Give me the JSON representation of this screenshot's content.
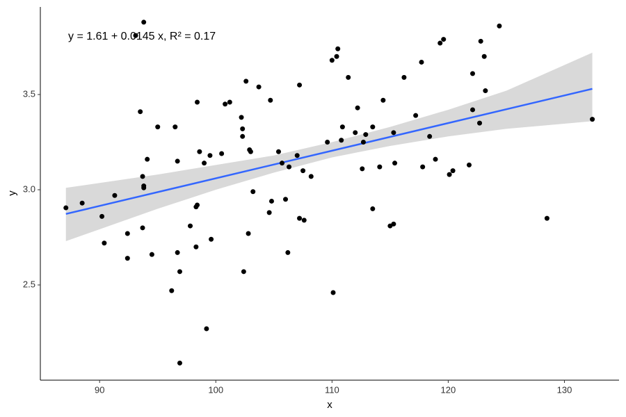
{
  "chart_data": {
    "type": "scatter",
    "annotation": "y = 1.61 + 0.0145 x, R² = 0.17",
    "x_label": "x",
    "y_label": "y",
    "xlim": [
      84.9,
      134.7
    ],
    "ylim": [
      2.0,
      3.96
    ],
    "xticks": [
      90,
      100,
      110,
      120,
      130
    ],
    "yticks": [
      2.5,
      {
        "value": 3,
        "label": "3.0"
      },
      3.5
    ],
    "grid": false,
    "points": {
      "color": "#000000",
      "x": [
        87.1,
        88.5,
        90.2,
        90.4,
        91.3,
        92.4,
        92.4,
        93.5,
        93.1,
        93.8,
        93.7,
        93.8,
        93.8,
        93.7,
        94.1,
        94.5,
        95.0,
        96.2,
        96.5,
        96.7,
        96.7,
        96.9,
        96.9,
        97.8,
        98.3,
        98.4,
        98.3,
        98.4,
        98.6,
        99.0,
        99.2,
        99.5,
        99.6,
        100.5,
        100.8,
        101.2,
        102.2,
        102.3,
        102.3,
        102.4,
        102.6,
        102.8,
        102.9,
        103.0,
        103.2,
        103.7,
        104.6,
        104.7,
        104.8,
        105.4,
        105.7,
        106.0,
        106.2,
        106.3,
        107.0,
        107.2,
        107.2,
        107.6,
        107.5,
        108.2,
        109.6,
        110.0,
        110.1,
        110.4,
        110.5,
        110.8,
        110.9,
        111.4,
        112.0,
        112.2,
        112.6,
        112.7,
        112.9,
        113.5,
        113.5,
        114.1,
        114.4,
        115.0,
        115.3,
        115.3,
        115.4,
        116.2,
        117.2,
        117.7,
        117.8,
        118.4,
        118.9,
        119.3,
        119.6,
        120.1,
        120.4,
        121.8,
        122.1,
        122.1,
        122.7,
        122.8,
        123.1,
        123.2,
        124.4,
        128.5,
        132.4
      ],
      "y": [
        2.905,
        2.93,
        2.86,
        2.72,
        2.97,
        2.77,
        2.64,
        3.41,
        3.81,
        3.88,
        3.07,
        3.02,
        3.01,
        2.8,
        3.16,
        2.66,
        3.33,
        2.47,
        3.33,
        3.15,
        2.67,
        2.57,
        2.09,
        2.81,
        2.91,
        2.92,
        2.7,
        3.46,
        3.2,
        3.14,
        2.27,
        3.18,
        2.74,
        3.19,
        3.45,
        3.46,
        3.38,
        3.28,
        3.32,
        2.57,
        3.57,
        2.77,
        3.21,
        3.2,
        2.99,
        3.54,
        2.88,
        3.47,
        2.94,
        3.2,
        3.14,
        2.95,
        2.67,
        3.12,
        3.18,
        3.55,
        2.85,
        2.84,
        3.1,
        3.07,
        3.25,
        3.68,
        2.46,
        3.7,
        3.74,
        3.26,
        3.33,
        3.59,
        3.3,
        3.43,
        3.11,
        3.25,
        3.29,
        2.9,
        3.33,
        3.12,
        3.47,
        2.81,
        2.82,
        3.3,
        3.14,
        3.59,
        3.39,
        3.67,
        3.12,
        3.28,
        3.16,
        3.77,
        3.79,
        3.08,
        3.1,
        3.13,
        3.61,
        3.42,
        3.35,
        3.78,
        3.7,
        3.52,
        3.86,
        2.85,
        3.37
      ]
    },
    "band": {
      "color": "#d9d9d9",
      "x": [
        87.1,
        95,
        100,
        105,
        110,
        115,
        120,
        125,
        132.4
      ],
      "lower": [
        2.73,
        2.9,
        3.0,
        3.09,
        3.17,
        3.23,
        3.28,
        3.32,
        3.36
      ],
      "upper": [
        3.01,
        3.08,
        3.13,
        3.18,
        3.25,
        3.33,
        3.42,
        3.52,
        3.72
      ]
    },
    "fit": {
      "color": "#3366ff",
      "x": [
        87.1,
        132.4
      ],
      "values": [
        2.873,
        3.53
      ]
    }
  }
}
